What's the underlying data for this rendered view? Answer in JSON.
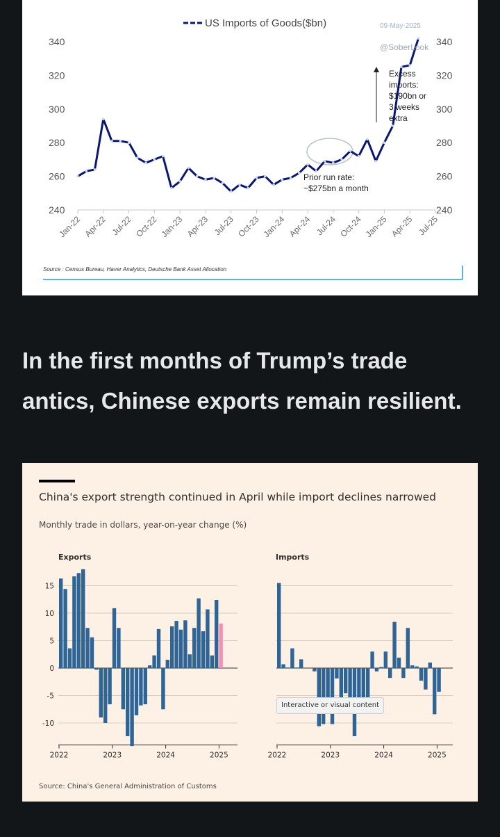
{
  "article": {
    "headline": "In the first months of Trump’s trade antics, Chinese exports remain resilient."
  },
  "top_chart": {
    "legend": "US Imports of Goods($bn)",
    "date": "09-May-2025",
    "watermark": "@SoberLook",
    "annotation_excess": [
      "Excess",
      "imports:",
      "$190bn or",
      "3 weeks",
      "extra"
    ],
    "annotation_prior": [
      "Prior run rate:",
      "~$275bn a month"
    ],
    "source": "Source : Census Bureau, Haver Analytics, Deutsche Bank Asset Allocation"
  },
  "ft_chart": {
    "title": "China's export strength continued in April while import declines narrowed",
    "subtitle": "Monthly trade in dollars, year-on-year change (%)",
    "panel_exports_label": "Exports",
    "panel_imports_label": "Imports",
    "source": "Source: China's General Administration of Customs",
    "tooltip": "Interactive or visual content"
  },
  "chart_data": [
    {
      "type": "line",
      "title": "US Imports of Goods($bn)",
      "color": "#0b1670",
      "ylim": [
        240,
        340
      ],
      "y_ticks": [
        240,
        260,
        280,
        300,
        320,
        340
      ],
      "x_ticks": [
        "Jan-22",
        "Apr-22",
        "Jul-22",
        "Oct-22",
        "Jan-23",
        "Apr-23",
        "Jul-23",
        "Oct-23",
        "Jan-24",
        "Apr-24",
        "Jul-24",
        "Oct-24",
        "Jan-25",
        "Apr-25",
        "Jul-25"
      ],
      "series": [
        {
          "name": "US Imports of Goods($bn)",
          "x_start": "2022-01",
          "values": [
            260,
            263,
            264,
            294,
            281,
            281,
            280,
            271,
            268,
            270,
            272,
            253,
            257,
            265,
            260,
            258,
            259,
            256,
            251,
            255,
            253,
            259,
            260,
            255,
            258,
            259,
            262,
            267,
            263,
            269,
            268,
            270,
            275,
            272,
            282,
            269,
            280,
            290,
            325,
            326,
            342
          ]
        }
      ]
    },
    {
      "type": "bar",
      "title": "Exports",
      "color": "#2e6596",
      "highlight_color": "#f48fb1",
      "ylim": [
        -14,
        18
      ],
      "y_ticks": [
        -10,
        -5,
        0,
        5,
        10,
        15
      ],
      "x_ticks": [
        "2022",
        "2023",
        "2024",
        "2025"
      ],
      "x_start": "2022-01",
      "values": [
        16.3,
        14.4,
        3.6,
        16.7,
        17.3,
        18.0,
        7.3,
        5.6,
        -0.3,
        -9.0,
        -10.0,
        -6.6,
        10.9,
        7.3,
        -7.5,
        -12.4,
        -14.2,
        -8.6,
        -6.8,
        -6.6,
        0.5,
        2.3,
        7.1,
        -7.5,
        1.5,
        7.6,
        8.6,
        7.0,
        8.7,
        2.5,
        7.3,
        12.7,
        6.7,
        10.7,
        2.3,
        12.4,
        8.1
      ],
      "highlight_last": true
    },
    {
      "type": "bar",
      "title": "Imports",
      "color": "#2e6596",
      "ylim": [
        -14,
        18
      ],
      "y_ticks": [
        -10,
        -5,
        0,
        5,
        10,
        15
      ],
      "x_ticks": [
        "2022",
        "2023",
        "2024",
        "2025"
      ],
      "x_start": "2022-01",
      "values": [
        15.5,
        0.7,
        0.1,
        3.6,
        0.1,
        1.6,
        0.0,
        0.0,
        -0.6,
        -10.6,
        -10.2,
        -7.5,
        -10.2,
        -1.9,
        -5.5,
        -4.6,
        -7.9,
        -12.4,
        -6.8,
        -7.3,
        -6.2,
        3.0,
        -0.6,
        0.2,
        3.0,
        -1.8,
        8.4,
        1.9,
        -1.8,
        7.3,
        0.5,
        0.3,
        -2.3,
        -3.9,
        1.0,
        -8.4,
        -4.3
      ],
      "highlight_last": false
    }
  ]
}
